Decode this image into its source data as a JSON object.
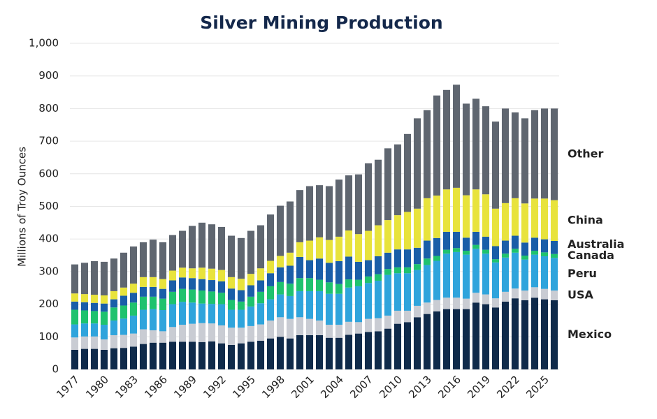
{
  "chart_data": {
    "type": "stacked-bar",
    "title": "Silver Mining Production",
    "y_label": "Millions of Troy Ounces",
    "categories": [
      "1977",
      null,
      null,
      "1980",
      null,
      null,
      "1983",
      null,
      null,
      "1986",
      null,
      null,
      "1989",
      null,
      null,
      "1992",
      null,
      null,
      "1995",
      null,
      null,
      "1998",
      null,
      null,
      "2001",
      null,
      null,
      "2004",
      null,
      null,
      "2007",
      null,
      null,
      "2010",
      null,
      null,
      "2013",
      null,
      null,
      "2016",
      null,
      null,
      "2019",
      null,
      null,
      "2022",
      null,
      null,
      "2025",
      null
    ],
    "series": [
      {
        "name": "Mexico",
        "color": "#0f2a4a",
        "values": [
          60,
          63,
          63,
          60,
          65,
          66,
          70,
          78,
          82,
          82,
          85,
          85,
          85,
          84,
          86,
          80,
          75,
          80,
          85,
          88,
          95,
          100,
          95,
          105,
          105,
          105,
          97,
          97,
          106,
          110,
          115,
          117,
          125,
          140,
          145,
          160,
          170,
          178,
          185,
          185,
          185,
          205,
          200,
          190,
          208,
          218,
          212,
          220,
          215,
          212
        ]
      },
      {
        "name": "USA",
        "color": "#c9ccd3",
        "values": [
          38,
          38,
          38,
          32,
          40,
          40,
          40,
          45,
          38,
          35,
          45,
          52,
          55,
          58,
          55,
          55,
          53,
          48,
          48,
          50,
          55,
          60,
          60,
          55,
          50,
          45,
          40,
          40,
          40,
          35,
          40,
          40,
          40,
          40,
          35,
          35,
          35,
          35,
          35,
          35,
          32,
          30,
          30,
          28,
          30,
          30,
          30,
          32,
          32,
          30
        ]
      },
      {
        "name": "Peru",
        "color": "#2fa4dc",
        "values": [
          40,
          40,
          40,
          45,
          45,
          50,
          55,
          60,
          65,
          65,
          70,
          70,
          65,
          60,
          60,
          65,
          55,
          55,
          60,
          65,
          65,
          70,
          70,
          80,
          85,
          90,
          95,
          95,
          105,
          110,
          110,
          115,
          125,
          115,
          115,
          110,
          115,
          120,
          135,
          140,
          135,
          135,
          125,
          110,
          105,
          110,
          95,
          100,
          100,
          100
        ]
      },
      {
        "name": "Canada",
        "color": "#1fc26e",
        "values": [
          45,
          40,
          38,
          40,
          40,
          40,
          40,
          40,
          38,
          35,
          38,
          40,
          40,
          40,
          38,
          35,
          30,
          25,
          30,
          35,
          40,
          38,
          38,
          40,
          40,
          35,
          35,
          30,
          25,
          20,
          20,
          20,
          18,
          18,
          18,
          18,
          20,
          15,
          12,
          12,
          12,
          12,
          12,
          10,
          12,
          12,
          12,
          12,
          12,
          12
        ]
      },
      {
        "name": "Australia",
        "color": "#1a5ea8",
        "values": [
          25,
          25,
          25,
          25,
          25,
          30,
          30,
          30,
          30,
          30,
          35,
          35,
          35,
          35,
          35,
          35,
          35,
          35,
          35,
          35,
          40,
          45,
          55,
          65,
          55,
          65,
          60,
          70,
          70,
          55,
          50,
          55,
          50,
          55,
          55,
          50,
          55,
          55,
          55,
          50,
          40,
          40,
          40,
          40,
          40,
          40,
          40,
          40,
          40,
          40
        ]
      },
      {
        "name": "China",
        "color": "#e8e33c",
        "values": [
          25,
          25,
          25,
          25,
          25,
          25,
          28,
          30,
          30,
          30,
          30,
          30,
          30,
          35,
          35,
          35,
          35,
          35,
          35,
          37,
          38,
          35,
          40,
          45,
          60,
          65,
          70,
          75,
          80,
          85,
          90,
          95,
          100,
          105,
          115,
          120,
          130,
          130,
          130,
          135,
          130,
          130,
          130,
          115,
          115,
          115,
          120,
          120,
          125,
          125
        ]
      },
      {
        "name": "Other",
        "color": "#5f6670",
        "values": [
          89,
          96,
          103,
          103,
          100,
          107,
          114,
          107,
          115,
          113,
          109,
          113,
          130,
          138,
          136,
          132,
          127,
          125,
          132,
          132,
          142,
          154,
          157,
          160,
          167,
          160,
          165,
          175,
          169,
          183,
          207,
          201,
          220,
          217,
          239,
          277,
          270,
          307,
          305,
          316,
          281,
          278,
          270,
          267,
          290,
          263,
          261,
          271,
          276,
          281
        ]
      }
    ],
    "ylim": [
      0,
      1000
    ],
    "yticks": [
      0,
      100,
      200,
      300,
      400,
      500,
      600,
      700,
      800,
      900,
      {
        "value": 1000,
        "label": "1,000"
      }
    ],
    "grid": true
  }
}
